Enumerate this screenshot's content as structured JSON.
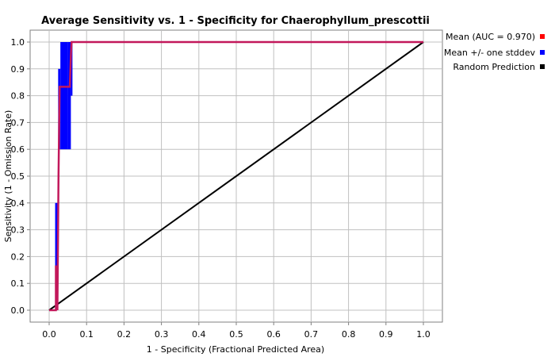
{
  "chart_data": {
    "type": "line",
    "title": "Average Sensitivity vs. 1 - Specificity for Chaerophyllum_prescottii",
    "xlabel": "1 - Specificity (Fractional Predicted Area)",
    "ylabel": "Sensitivity (1 - Omission Rate)",
    "xlim": [
      0.0,
      1.0
    ],
    "ylim": [
      0.0,
      1.0
    ],
    "x_ticks": [
      "0.0",
      "0.1",
      "0.2",
      "0.3",
      "0.4",
      "0.5",
      "0.6",
      "0.7",
      "0.8",
      "0.9",
      "1.0"
    ],
    "y_ticks": [
      "0.0",
      "0.1",
      "0.2",
      "0.3",
      "0.4",
      "0.5",
      "0.6",
      "0.7",
      "0.8",
      "0.9",
      "1.0"
    ],
    "grid": true,
    "legend_position": "right",
    "series": [
      {
        "name": "Mean (AUC = 0.970)",
        "color": "#ff0000",
        "x": [
          0.0,
          0.018,
          0.018,
          0.022,
          0.025,
          0.028,
          0.03,
          0.055,
          0.058,
          0.06,
          1.0
        ],
        "y": [
          0.0,
          0.0,
          0.167,
          0.0,
          0.5,
          0.833,
          0.833,
          0.833,
          0.95,
          1.0,
          1.0
        ]
      },
      {
        "name": "Mean +/- one stddev",
        "color": "#0000ff",
        "bands": [
          {
            "x0": 0.016,
            "x1": 0.02,
            "y0": 0.0,
            "y1": 0.4
          },
          {
            "x0": 0.02,
            "x1": 0.024,
            "y0": 0.1,
            "y1": 0.4
          },
          {
            "x0": 0.024,
            "x1": 0.03,
            "y0": 0.6,
            "y1": 0.9
          },
          {
            "x0": 0.03,
            "x1": 0.05,
            "y0": 0.6,
            "y1": 1.0
          },
          {
            "x0": 0.05,
            "x1": 0.058,
            "y0": 0.6,
            "y1": 1.0
          },
          {
            "x0": 0.058,
            "x1": 0.062,
            "y0": 0.8,
            "y1": 1.0
          }
        ]
      },
      {
        "name": "Random Prediction",
        "color": "#000000",
        "x": [
          0.0,
          1.0
        ],
        "y": [
          0.0,
          1.0
        ]
      }
    ]
  }
}
